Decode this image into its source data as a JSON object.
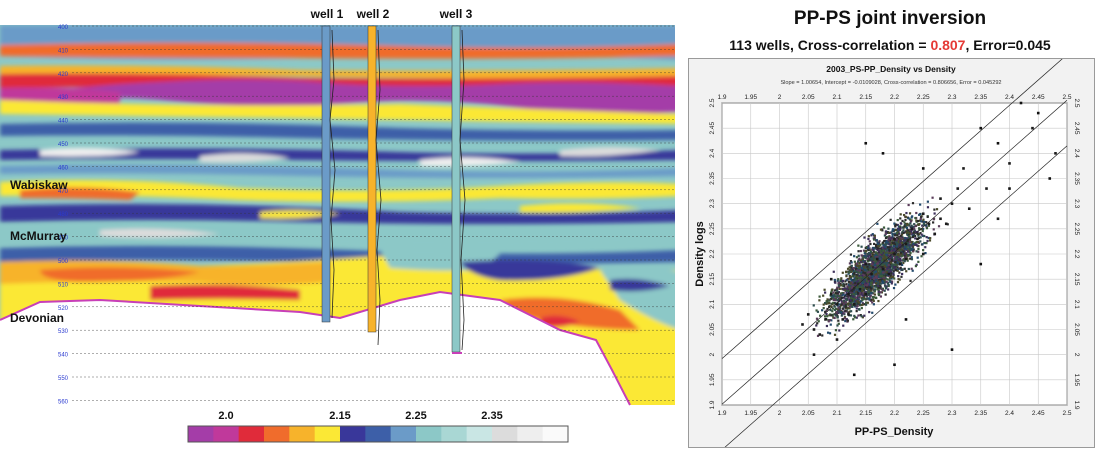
{
  "seismic": {
    "wells": [
      "well 1",
      "well 2",
      "well 3"
    ],
    "horizons": [
      "Wabiskaw",
      "McMurray",
      "Devonian"
    ],
    "depth_ticks": [
      "400",
      "410",
      "420",
      "430",
      "440",
      "450",
      "460",
      "470",
      "480",
      "490",
      "500",
      "510",
      "520",
      "530",
      "540",
      "550",
      "560"
    ],
    "colorbar": {
      "ticks": [
        "2.0",
        "2.15",
        "2.25",
        "2.35"
      ],
      "tick_values": [
        2.0,
        2.15,
        2.25,
        2.35
      ],
      "range": [
        1.95,
        2.45
      ],
      "stops": [
        "#a43da8",
        "#c0399b",
        "#e02b3a",
        "#f06c2c",
        "#f7b32b",
        "#fbe835",
        "#39379a",
        "#3d5fa8",
        "#6b9bc8",
        "#8cc8c7",
        "#a9d7d4",
        "#c9e6e4",
        "#dcdcdc",
        "#eeeeee",
        "#fafafa"
      ]
    }
  },
  "scatter": {
    "title": "PP-PS joint inversion",
    "subtitle_prefix": "113 wells, Cross-correlation = ",
    "subtitle_cc": "0.807",
    "subtitle_suffix": ", Error=0.045",
    "plot_title": "2003_PS-PP_Density vs Density",
    "stats_line": "Slope = 1.00654, Intercept = -0.0109028, Cross-correlation = 0.806656, Error = 0.045292"
  },
  "chart_data": [
    {
      "type": "scatter",
      "title": "2003_PS-PP_Density vs Density",
      "subtitle": "Slope = 1.00654, Intercept = -0.0109028, Cross-correlation = 0.806656, Error = 0.045292",
      "xlabel": "PP-PS_Density",
      "ylabel": "Density logs",
      "xlim": [
        1.9,
        2.5
      ],
      "ylim": [
        1.9,
        2.5
      ],
      "xticks": [
        "1.9",
        "1.95",
        "2",
        "2.05",
        "2.1",
        "2.15",
        "2.2",
        "2.25",
        "2.3",
        "2.35",
        "2.4",
        "2.45",
        "2.5"
      ],
      "yticks": [
        "1.9",
        "1.95",
        "2",
        "2.05",
        "2.1",
        "2.15",
        "2.2",
        "2.25",
        "2.3",
        "2.35",
        "2.4",
        "2.45",
        "2.5"
      ],
      "grid": true,
      "regression": {
        "slope": 1.00654,
        "intercept": -0.0109028,
        "error": 0.045292
      },
      "cross_correlation": 0.806656,
      "x": [
        2.06,
        2.08,
        2.1,
        2.12,
        2.14,
        2.16,
        2.18,
        2.2,
        2.22,
        2.24,
        2.26,
        2.28,
        2.3,
        2.09,
        2.13,
        2.17,
        2.21,
        2.25,
        2.29,
        2.11,
        2.15,
        2.19,
        2.23,
        2.27,
        2.31,
        2.07,
        2.33,
        2.36,
        2.4,
        2.44,
        2.48,
        2.32,
        2.38,
        2.05,
        2.1,
        2.15,
        2.22,
        2.28,
        2.04,
        2.06,
        2.09,
        2.12,
        2.2,
        2.25
      ],
      "y": [
        2.05,
        2.07,
        2.1,
        2.12,
        2.13,
        2.16,
        2.17,
        2.2,
        2.22,
        2.23,
        2.26,
        2.27,
        2.3,
        2.12,
        2.1,
        2.19,
        2.18,
        2.28,
        2.26,
        2.07,
        2.18,
        2.16,
        2.25,
        2.24,
        2.33,
        2.04,
        2.29,
        2.33,
        2.38,
        2.45,
        2.4,
        2.37,
        2.27,
        2.08,
        2.03,
        2.12,
        2.19,
        2.31,
        2.06,
        2.0,
        2.15,
        2.08,
        2.23,
        2.2
      ],
      "outliers": {
        "x": [
          2.15,
          2.18,
          2.25,
          2.35,
          2.38,
          2.42,
          2.47,
          2.2,
          2.3,
          2.45,
          2.13,
          2.35,
          2.22,
          2.4
        ],
        "y": [
          2.42,
          2.4,
          2.37,
          2.45,
          2.42,
          2.5,
          2.35,
          1.98,
          2.01,
          2.48,
          1.96,
          2.18,
          2.07,
          2.33
        ]
      }
    },
    {
      "type": "heatmap",
      "title": "",
      "xlabel": "",
      "ylabel": "",
      "colorbar_ticks": [
        2.0,
        2.15,
        2.25,
        2.35
      ],
      "depth_range": [
        400,
        560
      ],
      "wells": [
        "well 1",
        "well 2",
        "well 3"
      ],
      "horizons": [
        "Wabiskaw",
        "McMurray",
        "Devonian"
      ]
    }
  ]
}
